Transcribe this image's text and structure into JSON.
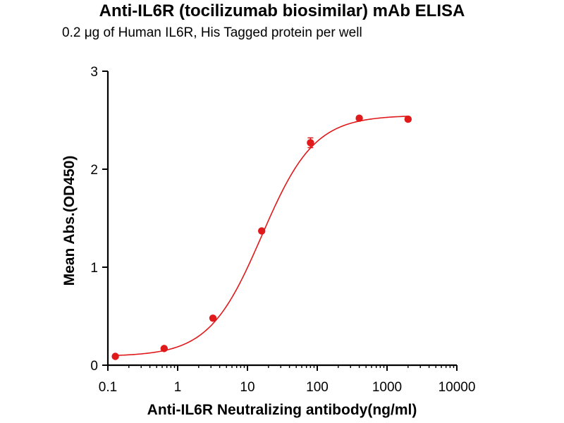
{
  "chart_data": {
    "type": "scatter",
    "title": "Anti-IL6R (tocilizumab biosimilar) mAb ELISA",
    "subtitle": "0.2 μg of Human IL6R, His Tagged protein per well",
    "xlabel": "Anti-IL6R Neutralizing antibody(ng/ml)",
    "ylabel": "Mean Abs.(OD450)",
    "x_scale": "log",
    "xlim": [
      0.1,
      10000
    ],
    "ylim": [
      0,
      3
    ],
    "x_ticks": [
      0.1,
      1,
      10,
      100,
      1000,
      10000
    ],
    "x_tick_labels": [
      "0.1",
      "1",
      "10",
      "100",
      "1000",
      "10000"
    ],
    "y_ticks": [
      0,
      1,
      2,
      3
    ],
    "y_tick_labels": [
      "0",
      "1",
      "2",
      "3"
    ],
    "grid": false,
    "color": "#e0191b",
    "points": {
      "x": [
        0.128,
        0.64,
        3.2,
        16,
        80,
        400,
        2000
      ],
      "y": [
        0.09,
        0.17,
        0.48,
        1.37,
        2.27,
        2.52,
        2.51
      ],
      "error": [
        0.01,
        0.01,
        0.02,
        0.02,
        0.05,
        0.02,
        0.02
      ]
    },
    "fit_curve": {
      "model": "4PL",
      "bottom": 0.09,
      "top": 2.55,
      "ec50": 16,
      "hill": 1.15
    }
  }
}
